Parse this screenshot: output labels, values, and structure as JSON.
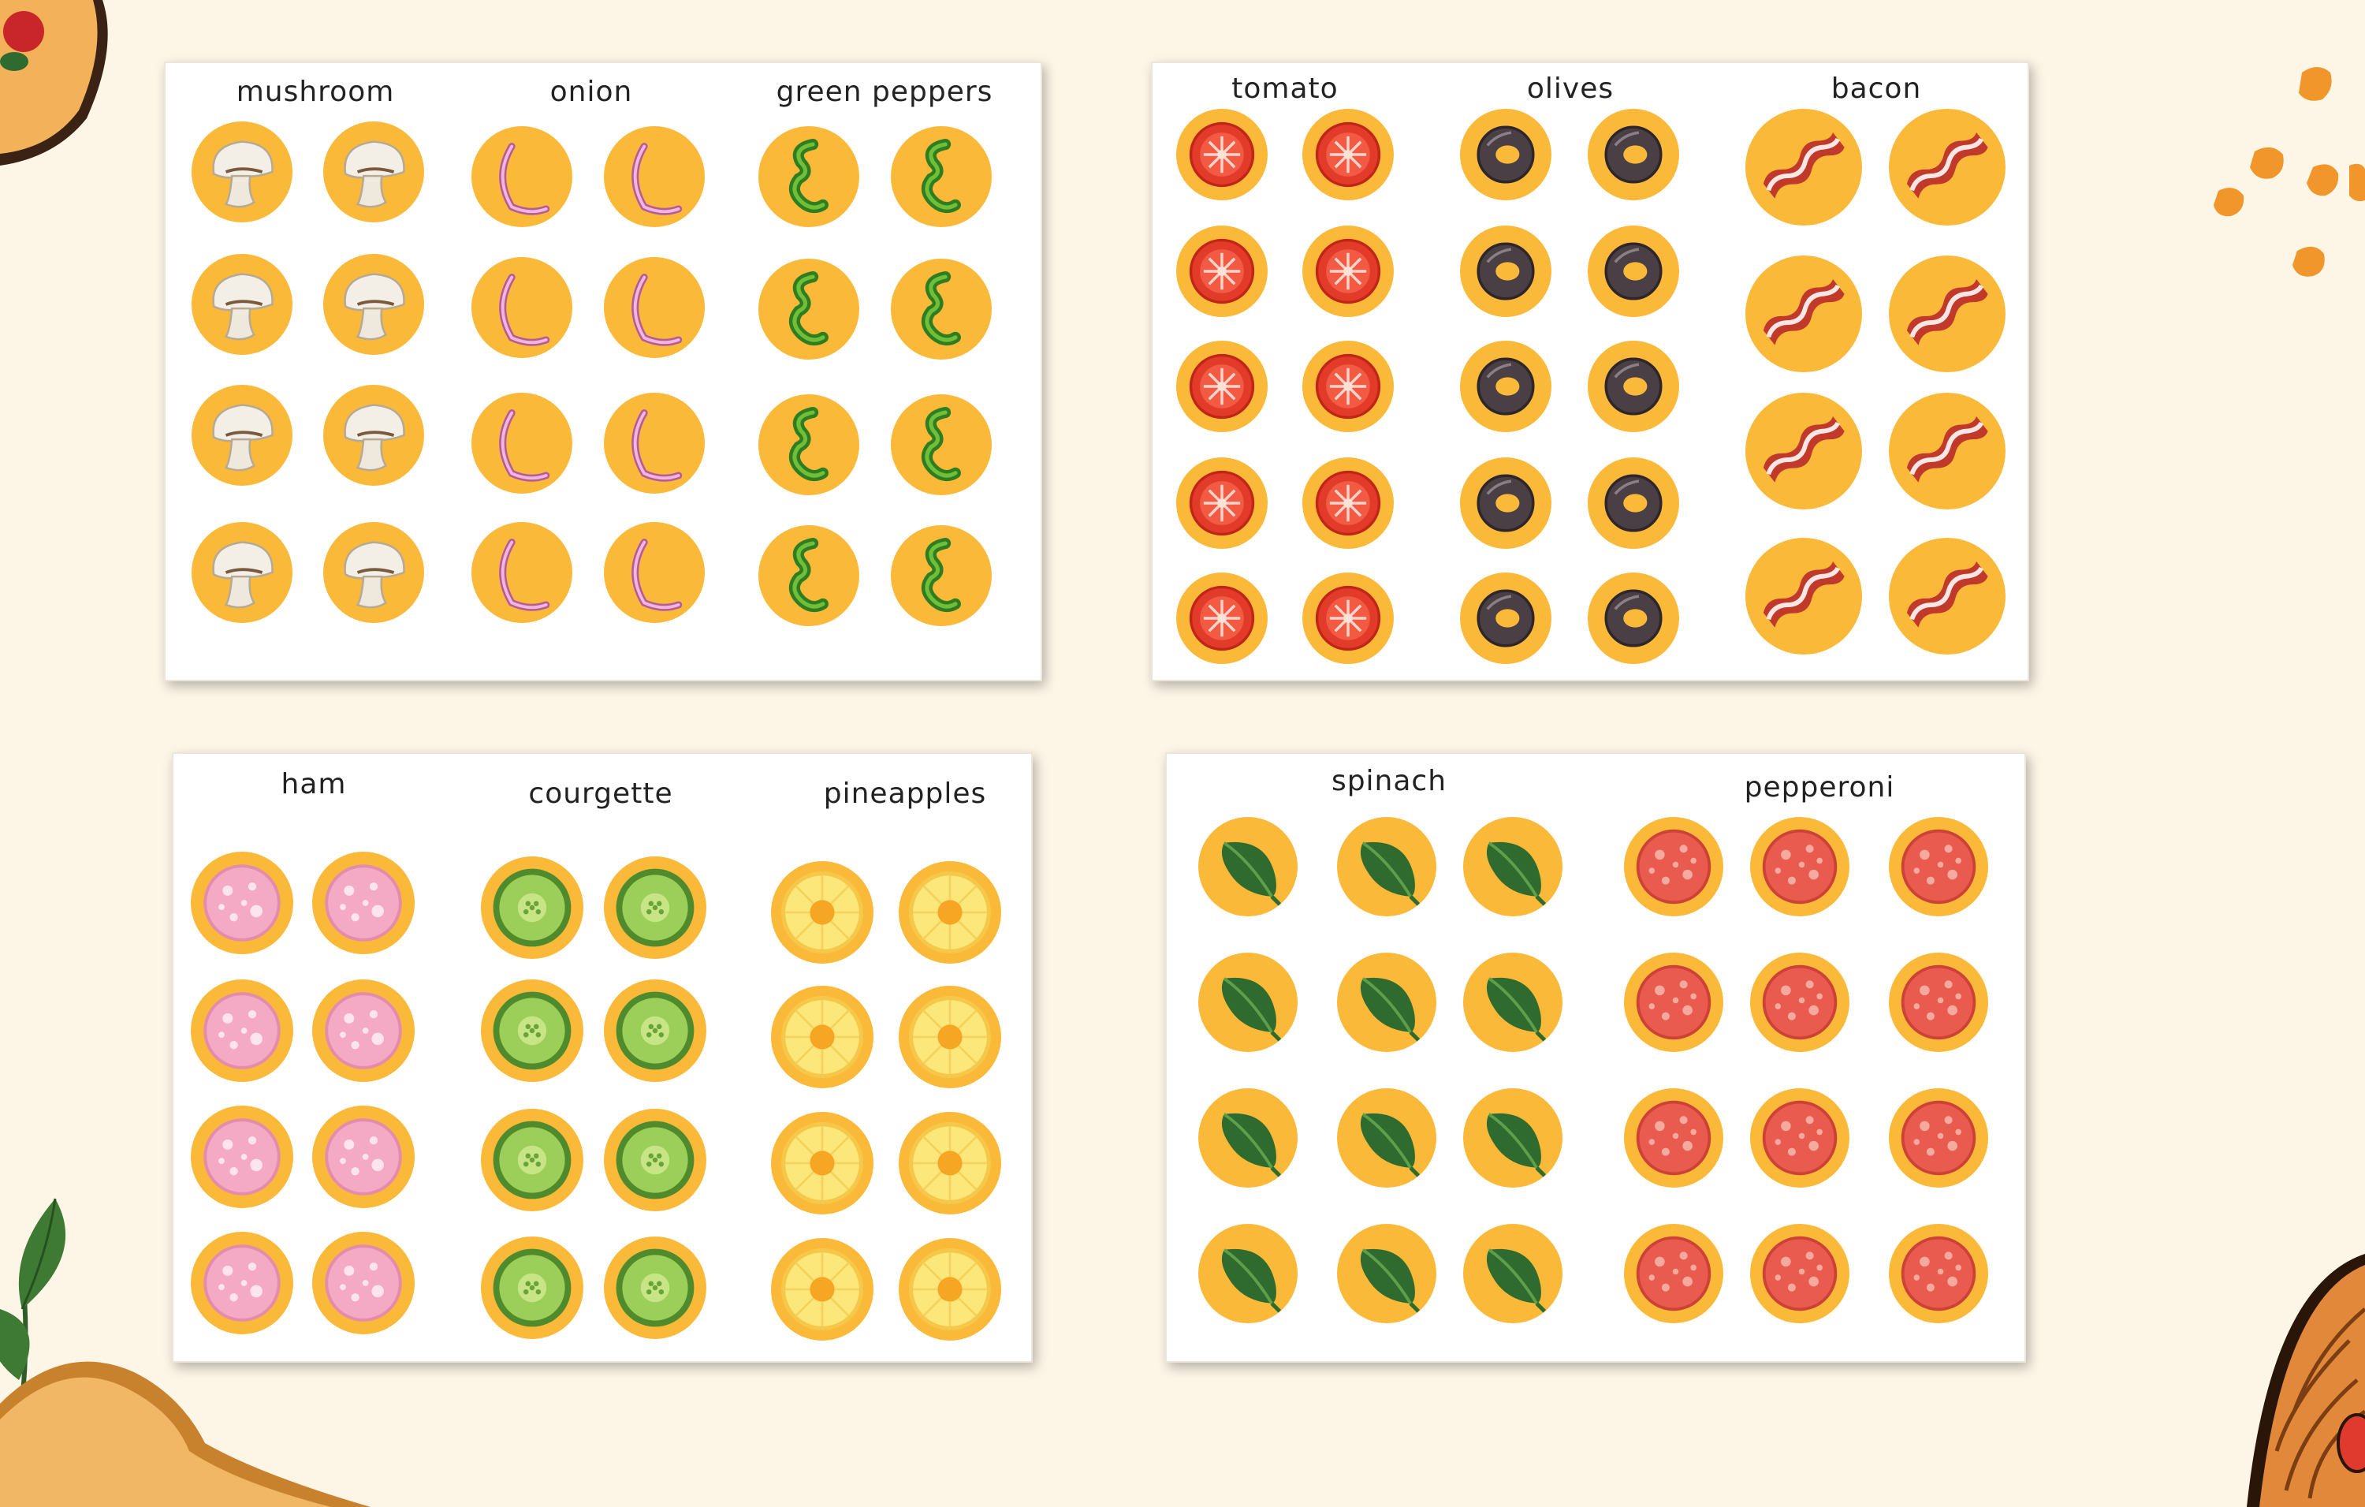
{
  "page": {
    "background": "#fdf5e6",
    "token_color": "#fbb93a"
  },
  "sheets": [
    {
      "id": "sheet-1",
      "labels": [
        "mushroom",
        "onion",
        "green peppers"
      ]
    },
    {
      "id": "sheet-2",
      "labels": [
        "tomato",
        "olives",
        "bacon"
      ]
    },
    {
      "id": "sheet-3",
      "labels": [
        "ham",
        "courgette",
        "pineapples"
      ]
    },
    {
      "id": "sheet-4",
      "labels": [
        "spinach",
        "pepperoni"
      ]
    }
  ],
  "toppings": [
    {
      "name": "mushroom",
      "icon": "mushroom-icon",
      "count": 8
    },
    {
      "name": "onion",
      "icon": "onion-icon",
      "count": 8
    },
    {
      "name": "green peppers",
      "icon": "green-pepper-icon",
      "count": 8
    },
    {
      "name": "tomato",
      "icon": "tomato-icon",
      "count": 10
    },
    {
      "name": "olives",
      "icon": "olive-icon",
      "count": 10
    },
    {
      "name": "bacon",
      "icon": "bacon-icon",
      "count": 8
    },
    {
      "name": "ham",
      "icon": "ham-icon",
      "count": 8
    },
    {
      "name": "courgette",
      "icon": "courgette-icon",
      "count": 8
    },
    {
      "name": "pineapples",
      "icon": "pineapple-icon",
      "count": 8
    },
    {
      "name": "spinach",
      "icon": "spinach-icon",
      "count": 12
    },
    {
      "name": "pepperoni",
      "icon": "pepperoni-icon",
      "count": 12
    }
  ]
}
